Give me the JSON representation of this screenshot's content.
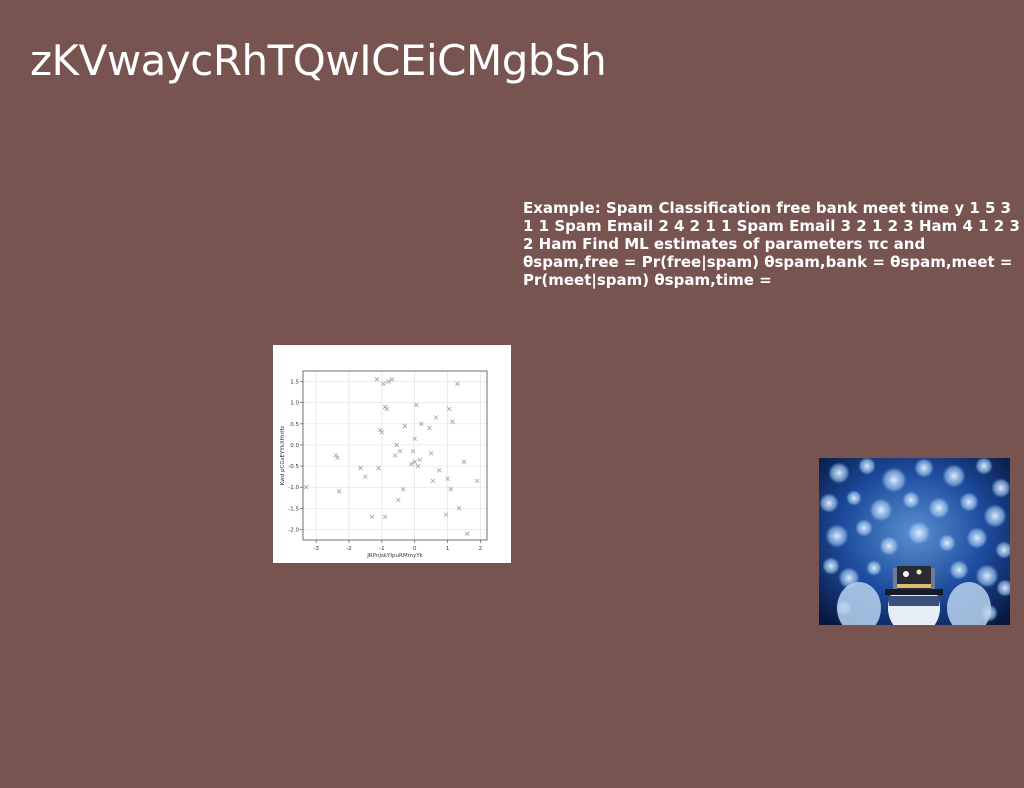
{
  "slide": {
    "title": "zKVwaycRhTQwICEiCMgbSh",
    "body": "Example: Spam Classification free bank meet time y 1 5 3 1 1 Spam Email 2 4 2 1 1 Spam Email 3 2 1 2 3 Ham 4 1 2 3 2 Ham Find ML estimates of parameters πc and θspam,free = Pr(free|spam) θspam,bank = θspam,meet = Pr(meet|spam) θspam,time ="
  },
  "colors": {
    "background": "#785450",
    "marker": "#8fa8a8"
  },
  "chart_data": {
    "type": "scatter",
    "xlabel": "JRPnJskYIpuRMmyYk",
    "ylabel": "Kwd pCGsEYYkXHnHz",
    "xlim": [
      -3.4,
      2.2
    ],
    "ylim": [
      -2.25,
      1.75
    ],
    "xticks": [
      "-3",
      "-2",
      "-1",
      "0",
      "1",
      "2"
    ],
    "yticks": [
      "1.5",
      "1.0",
      "0.5",
      "0.0",
      "-0.5",
      "-1.0",
      "-1.5",
      "-2.0"
    ],
    "grid": true,
    "marker": "x",
    "points": [
      [
        -3.3,
        -1.0
      ],
      [
        -2.4,
        -0.25
      ],
      [
        -2.35,
        -0.3
      ],
      [
        -2.3,
        -1.1
      ],
      [
        -1.65,
        -0.55
      ],
      [
        -1.5,
        -0.75
      ],
      [
        -1.3,
        -1.7
      ],
      [
        -1.15,
        1.55
      ],
      [
        -1.1,
        -0.55
      ],
      [
        -1.05,
        0.35
      ],
      [
        -1.0,
        0.3
      ],
      [
        -0.95,
        1.45
      ],
      [
        -0.9,
        0.9
      ],
      [
        -0.9,
        -1.7
      ],
      [
        -0.85,
        0.85
      ],
      [
        -0.8,
        1.5
      ],
      [
        -0.7,
        1.55
      ],
      [
        -0.6,
        -0.25
      ],
      [
        -0.55,
        0.0
      ],
      [
        -0.5,
        -1.3
      ],
      [
        -0.45,
        -0.15
      ],
      [
        -0.35,
        -1.05
      ],
      [
        -0.3,
        0.45
      ],
      [
        -0.1,
        -0.45
      ],
      [
        -0.05,
        -0.15
      ],
      [
        0.0,
        -0.4
      ],
      [
        0.0,
        0.15
      ],
      [
        0.05,
        0.95
      ],
      [
        0.1,
        -0.5
      ],
      [
        0.15,
        -0.35
      ],
      [
        0.2,
        0.5
      ],
      [
        0.45,
        0.4
      ],
      [
        0.5,
        -0.2
      ],
      [
        0.55,
        -0.85
      ],
      [
        0.65,
        0.65
      ],
      [
        0.75,
        -0.6
      ],
      [
        0.95,
        -1.65
      ],
      [
        1.0,
        -0.8
      ],
      [
        1.05,
        0.85
      ],
      [
        1.1,
        -1.05
      ],
      [
        1.15,
        0.55
      ],
      [
        1.3,
        1.45
      ],
      [
        1.35,
        -1.5
      ],
      [
        1.5,
        -0.4
      ],
      [
        1.6,
        -2.1
      ],
      [
        1.9,
        -0.85
      ]
    ]
  },
  "image": {
    "icon": "snowman-photo"
  }
}
